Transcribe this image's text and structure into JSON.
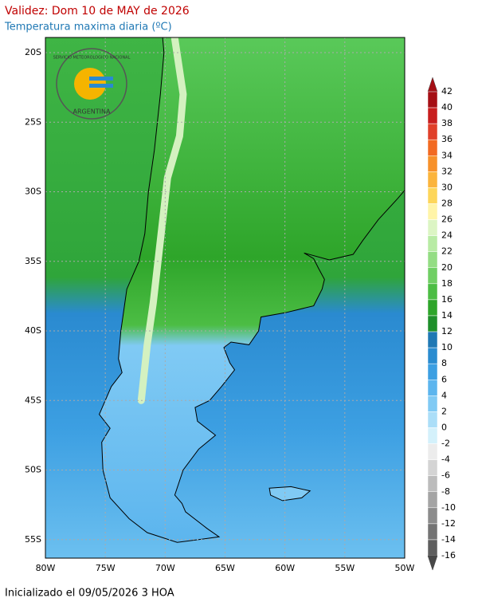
{
  "header": {
    "title": "Validez: Dom 10 de MAY de 2026",
    "subtitle": "Temperatura maxima diaria (ºC)"
  },
  "map": {
    "lat_labels": [
      "20S",
      "25S",
      "30S",
      "35S",
      "40S",
      "45S",
      "50S",
      "55S"
    ],
    "lon_labels": [
      "80W",
      "75W",
      "70W",
      "65W",
      "60W",
      "55W",
      "50W"
    ]
  },
  "logo": {
    "top_text": "SERVICIO METEOROLOGICO NACIONAL",
    "bottom_text": "ARGENTINA"
  },
  "colorbar": {
    "levels": [
      42,
      40,
      38,
      36,
      34,
      32,
      30,
      28,
      26,
      24,
      22,
      20,
      18,
      16,
      14,
      12,
      10,
      8,
      6,
      4,
      2,
      0,
      -2,
      -4,
      -6,
      -8,
      -10,
      -12,
      -14,
      -16
    ],
    "colors": [
      "#a50f15",
      "#c81e1e",
      "#e0402a",
      "#f26a22",
      "#f7912a",
      "#fbb43c",
      "#fdd65a",
      "#fff4a8",
      "#dcf5c4",
      "#b8eba4",
      "#94dd84",
      "#70cf64",
      "#4cbd44",
      "#2ea52a",
      "#1e8f2a",
      "#1f78b4",
      "#2a8cd0",
      "#3c9fe2",
      "#5cb5ee",
      "#80caf4",
      "#abdef8",
      "#d4f1fb",
      "#ececec",
      "#d4d4d4",
      "#bcbcbc",
      "#a4a4a4",
      "#8c8c8c",
      "#747474",
      "#5e5e5e",
      "#484848"
    ]
  },
  "footer": "Inicializado el 09/05/2026 3 HOA"
}
